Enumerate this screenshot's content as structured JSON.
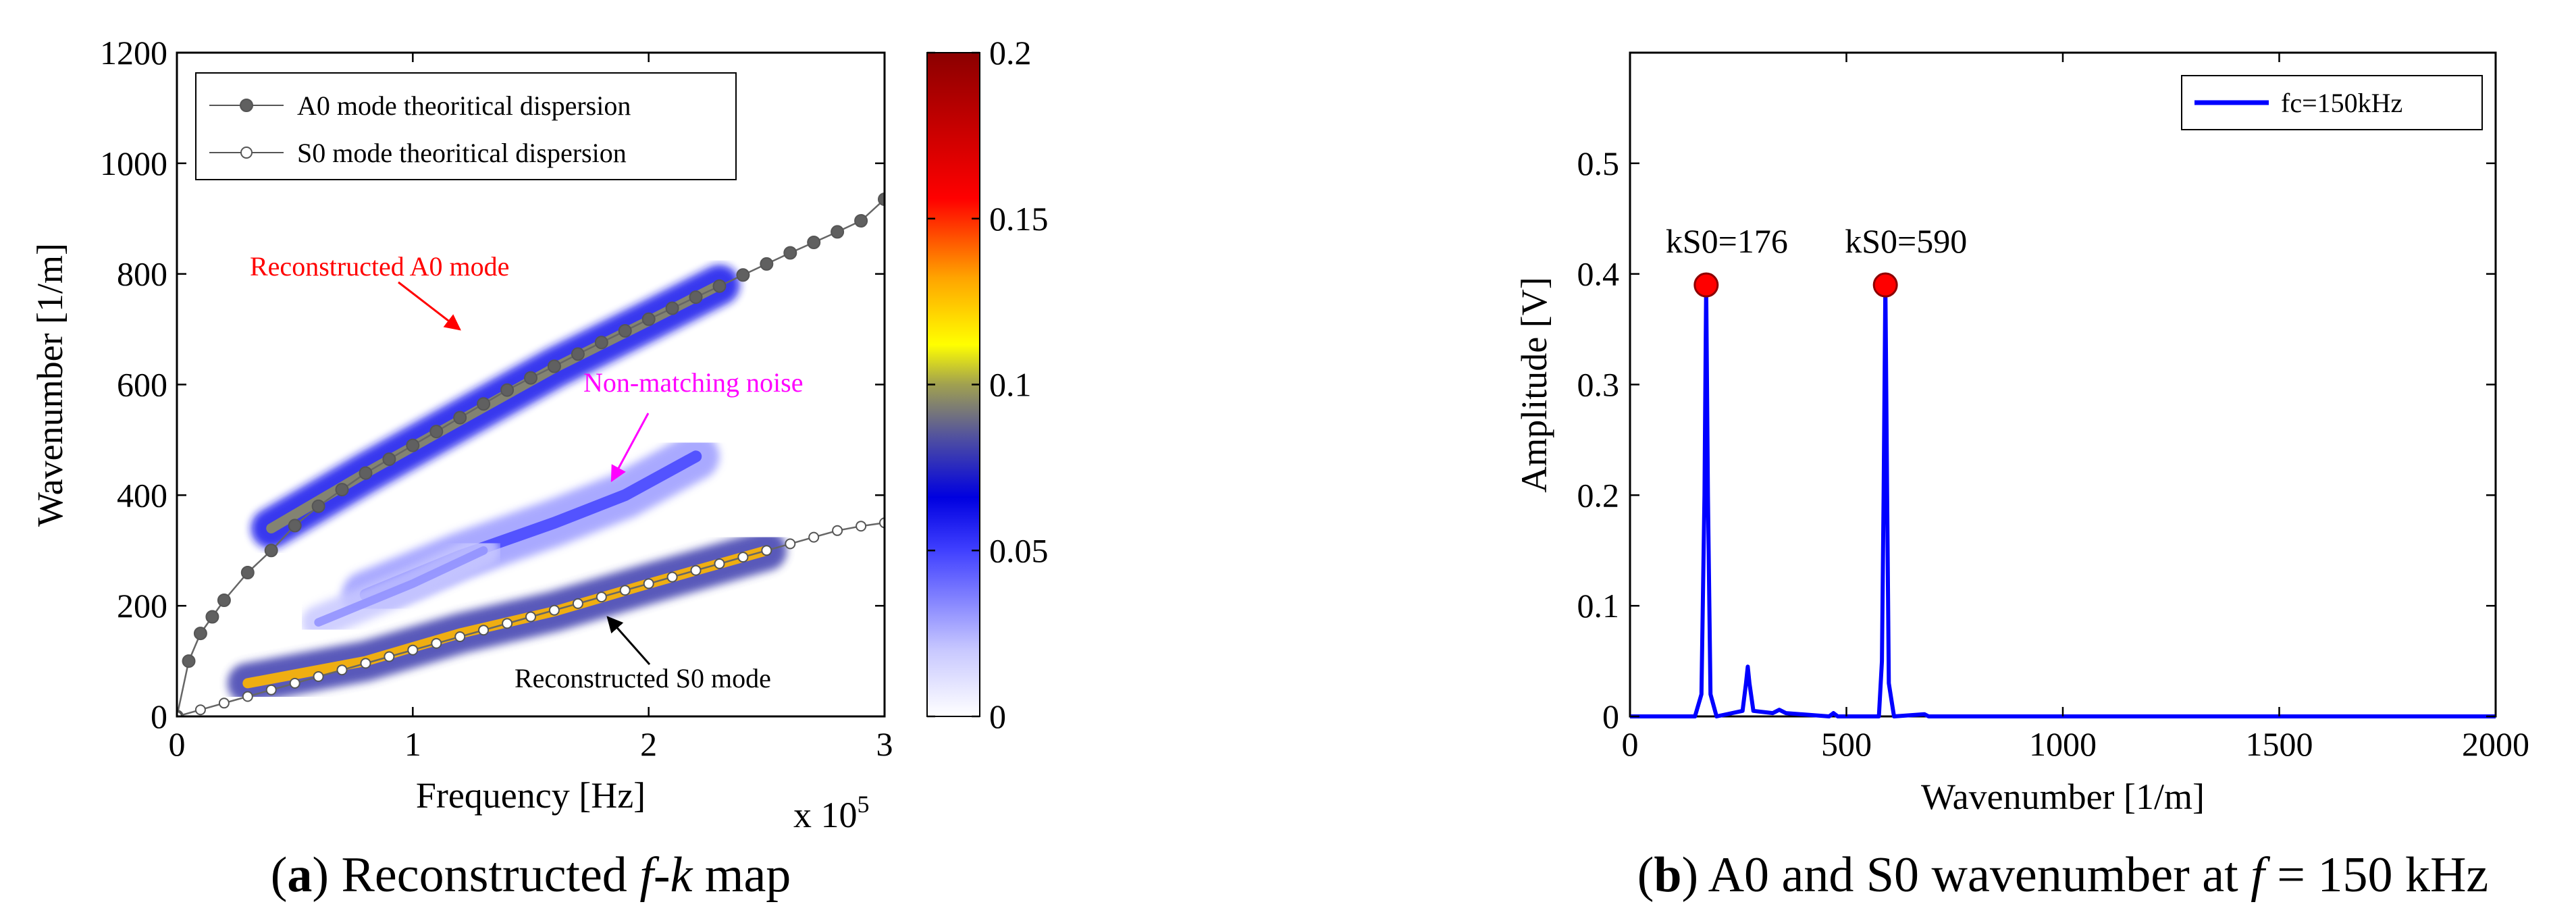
{
  "chart_data": [
    {
      "panel": "a",
      "type": "heatmap",
      "title": "",
      "caption": {
        "letter": "a",
        "text": " Reconstructed ",
        "f": "f",
        "dash": "-",
        "k": "k",
        "suffix": " map"
      },
      "xlabel": "Frequency [Hz]",
      "x_multiplier": "x 10",
      "x_multiplier_exp": "5",
      "ylabel": "Wavenumber [1/m]",
      "xlim": [
        0,
        3
      ],
      "ylim": [
        0,
        1200
      ],
      "xticks": [
        "0",
        "1",
        "2",
        "3"
      ],
      "yticks": [
        "0",
        "200",
        "400",
        "600",
        "800",
        "1000",
        "1200"
      ],
      "colorbar": {
        "range": [
          0,
          0.2
        ],
        "ticks": [
          "0",
          "0.05",
          "0.1",
          "0.15",
          "0.2"
        ]
      },
      "legend": {
        "position": "top-left",
        "entries": [
          "A0 mode theoritical dispersion",
          "S0 mode theoritical dispersion"
        ]
      },
      "series": [
        {
          "name": "A0 mode theoritical dispersion",
          "style": "filled-marker",
          "points": [
            [
              0,
              0
            ],
            [
              0.05,
              100
            ],
            [
              0.1,
              150
            ],
            [
              0.15,
              180
            ],
            [
              0.2,
              210
            ],
            [
              0.3,
              260
            ],
            [
              0.4,
              300
            ],
            [
              0.5,
              345
            ],
            [
              0.6,
              380
            ],
            [
              0.7,
              410
            ],
            [
              0.8,
              440
            ],
            [
              0.9,
              465
            ],
            [
              1.0,
              490
            ],
            [
              1.1,
              515
            ],
            [
              1.2,
              540
            ],
            [
              1.3,
              565
            ],
            [
              1.4,
              590
            ],
            [
              1.5,
              612
            ],
            [
              1.6,
              633
            ],
            [
              1.7,
              655
            ],
            [
              1.8,
              676
            ],
            [
              1.9,
              697
            ],
            [
              2.0,
              718
            ],
            [
              2.1,
              738
            ],
            [
              2.2,
              758
            ],
            [
              2.3,
              778
            ],
            [
              2.4,
              798
            ],
            [
              2.5,
              818
            ],
            [
              2.6,
              838
            ],
            [
              2.7,
              857
            ],
            [
              2.8,
              876
            ],
            [
              2.9,
              896
            ],
            [
              3.0,
              935
            ]
          ]
        },
        {
          "name": "S0 mode theoritical dispersion",
          "style": "open-marker",
          "points": [
            [
              0,
              0
            ],
            [
              0.1,
              12
            ],
            [
              0.2,
              24
            ],
            [
              0.3,
              36
            ],
            [
              0.4,
              48
            ],
            [
              0.5,
              60
            ],
            [
              0.6,
              72
            ],
            [
              0.7,
              84
            ],
            [
              0.8,
              96
            ],
            [
              0.9,
              108
            ],
            [
              1.0,
              120
            ],
            [
              1.1,
              132
            ],
            [
              1.2,
              144
            ],
            [
              1.3,
              156
            ],
            [
              1.4,
              168
            ],
            [
              1.5,
              180
            ],
            [
              1.6,
              192
            ],
            [
              1.7,
              204
            ],
            [
              1.8,
              216
            ],
            [
              1.9,
              228
            ],
            [
              2.0,
              240
            ],
            [
              2.1,
              252
            ],
            [
              2.2,
              264
            ],
            [
              2.3,
              276
            ],
            [
              2.4,
              288
            ],
            [
              2.5,
              300
            ],
            [
              2.6,
              312
            ],
            [
              2.7,
              324
            ],
            [
              2.8,
              336
            ],
            [
              2.9,
              344
            ],
            [
              3.0,
              350
            ]
          ]
        }
      ],
      "reconstructed_bands": [
        {
          "name": "A0 reconstructed",
          "points": [
            [
              0.4,
              340
            ],
            [
              0.8,
              440
            ],
            [
              1.2,
              535
            ],
            [
              1.6,
              630
            ],
            [
              2.0,
              715
            ],
            [
              2.3,
              780
            ]
          ],
          "width": 60,
          "intensity": 0.06
        },
        {
          "name": "S0 reconstructed",
          "points": [
            [
              0.3,
              60
            ],
            [
              0.8,
              100
            ],
            [
              1.2,
              150
            ],
            [
              1.6,
              190
            ],
            [
              2.0,
              240
            ],
            [
              2.5,
              300
            ]
          ],
          "width": 60,
          "intensity": 0.08
        },
        {
          "name": "Non-matching noise",
          "points": [
            [
              0.8,
              220
            ],
            [
              1.2,
              290
            ],
            [
              1.6,
              350
            ],
            [
              1.9,
              400
            ],
            [
              2.2,
              470
            ]
          ],
          "width": 70,
          "intensity": 0.03
        },
        {
          "name": "Upper faint band",
          "points": [
            [
              0.6,
              170
            ],
            [
              1.0,
              240
            ],
            [
              1.3,
              300
            ]
          ],
          "width": 50,
          "intensity": 0.02
        }
      ],
      "annotations": [
        {
          "text": "Reconstructed A0 mode",
          "color": "#ff0000",
          "at": [
            0.35,
            800
          ],
          "arrow_to": [
            1.22,
            600
          ]
        },
        {
          "text": "Non-matching noise",
          "color": "#ff00ff",
          "at": [
            1.72,
            600
          ],
          "arrow_to": [
            1.7,
            420
          ]
        },
        {
          "text": "Reconstructed S0 mode",
          "color": "#000000",
          "at": [
            1.43,
            60
          ],
          "arrow_to": [
            1.52,
            170
          ]
        }
      ]
    },
    {
      "panel": "b",
      "type": "line",
      "caption": {
        "letter": "b",
        "text": " A0 and S0 wavenumber at ",
        "f": "f",
        "eq": " = 150 kHz"
      },
      "xlabel": "Wavenumber [1/m]",
      "ylabel": "Amplitude [V]",
      "xlim": [
        0,
        2000
      ],
      "ylim": [
        0,
        0.6
      ],
      "xticks": [
        "0",
        "500",
        "1000",
        "1500",
        "2000"
      ],
      "yticks": [
        "0",
        "0.1",
        "0.2",
        "0.3",
        "0.4",
        "0.5"
      ],
      "legend": {
        "position": "top-right",
        "entries": [
          "fc=150kHz"
        ]
      },
      "series": [
        {
          "name": "fc=150kHz",
          "color": "#0000ff",
          "points": [
            [
              0,
              0
            ],
            [
              150,
              0
            ],
            [
              165,
              0.02
            ],
            [
              172,
              0.2
            ],
            [
              176,
              0.39
            ],
            [
              180,
              0.2
            ],
            [
              186,
              0.02
            ],
            [
              200,
              0
            ],
            [
              260,
              0.005
            ],
            [
              268,
              0.03
            ],
            [
              272,
              0.045
            ],
            [
              276,
              0.03
            ],
            [
              285,
              0.005
            ],
            [
              330,
              0.003
            ],
            [
              345,
              0.006
            ],
            [
              360,
              0.003
            ],
            [
              460,
              0
            ],
            [
              470,
              0.003
            ],
            [
              480,
              0
            ],
            [
              575,
              0
            ],
            [
              582,
              0.05
            ],
            [
              586,
              0.2
            ],
            [
              590,
              0.39
            ],
            [
              594,
              0.2
            ],
            [
              598,
              0.03
            ],
            [
              610,
              0
            ],
            [
              680,
              0.002
            ],
            [
              690,
              0
            ],
            [
              2000,
              0
            ]
          ]
        }
      ],
      "peaks": [
        {
          "label": "kS0=176",
          "x": 176,
          "y": 0.39
        },
        {
          "label": "kS0=590",
          "x": 590,
          "y": 0.39
        }
      ]
    }
  ]
}
